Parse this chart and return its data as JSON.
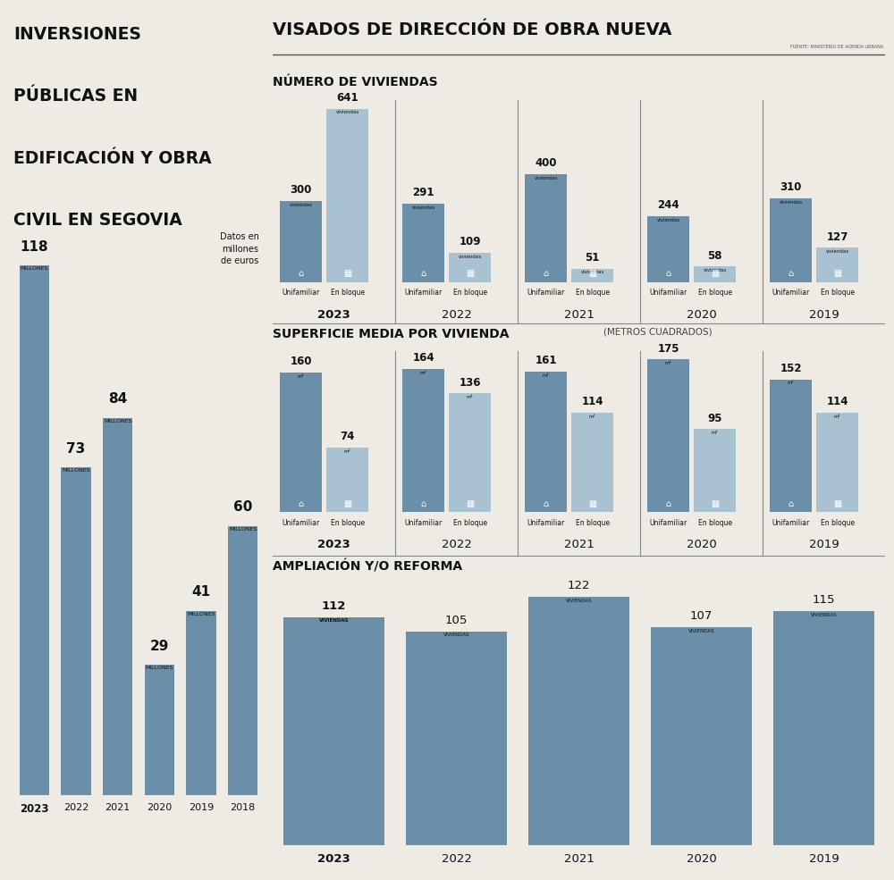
{
  "bg_color": "#eeebe5",
  "dark_blue": "#6b8fa8",
  "light_blue": "#a8c2d2",
  "text_dark": "#111111",
  "left_title_lines": [
    "INVERSIONES",
    "PÚBLICAS EN",
    "EDIFICACIÓN Y OBRA",
    "CIVIL EN SEGOVIA"
  ],
  "left_subtitle": "Datos en\nmillones\nde euros",
  "left_years": [
    "2023",
    "2022",
    "2021",
    "2020",
    "2019",
    "2018"
  ],
  "left_values": [
    118,
    73,
    84,
    29,
    41,
    60
  ],
  "right_title": "VISADOS DE DIRECCIÓN DE OBRA NUEVA",
  "source_label": "FUENTE: MINISTERIO DE AGENDA URBANA.",
  "sec1_title": "NÚMERO DE VIVIENDAS",
  "sec1_years": [
    "2023",
    "2022",
    "2021",
    "2020",
    "2019"
  ],
  "sec1_unifamiliar": [
    300,
    291,
    400,
    244,
    310
  ],
  "sec1_enbloque": [
    641,
    109,
    51,
    58,
    127
  ],
  "sec2_title": "SUPERFICIE MEDIA POR VIVIENDA",
  "sec2_subtitle": "(METROS CUADRADOS)",
  "sec2_unifamiliar": [
    160,
    164,
    161,
    175,
    152
  ],
  "sec2_enbloque": [
    74,
    136,
    114,
    95,
    114
  ],
  "sec3_title": "AMPLIACIÓN Y/O REFORMA",
  "sec3_years": [
    "2023",
    "2022",
    "2021",
    "2020",
    "2019"
  ],
  "sec3_values": [
    112,
    105,
    122,
    107,
    115
  ]
}
